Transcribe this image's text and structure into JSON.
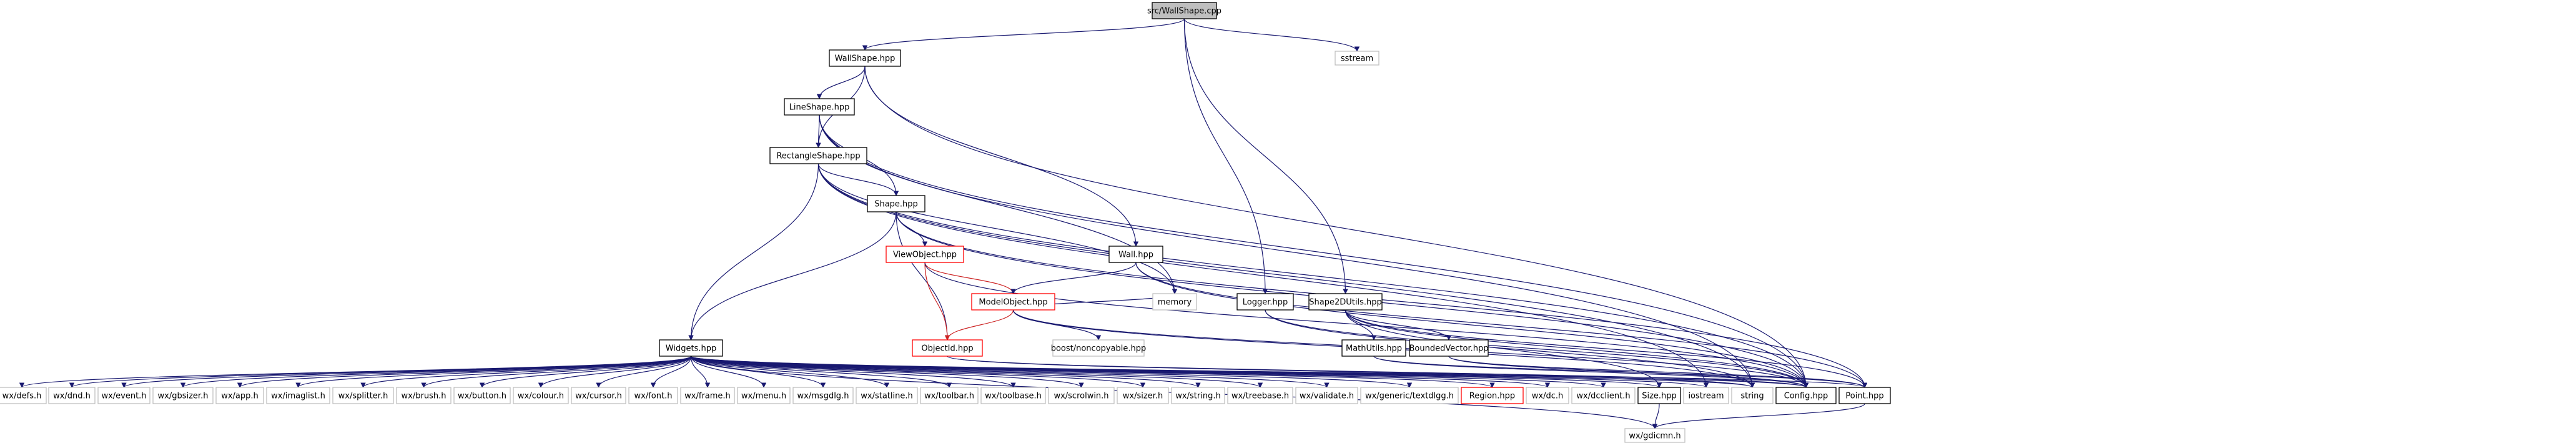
{
  "graph": {
    "colors": {
      "edge_blue": "#191970",
      "edge_red": "#cc2222",
      "truncated_border": "#ff0000",
      "root_fill": "#bfbfbf",
      "node_border": "#000000",
      "external_border": "#bfbfbf"
    },
    "nodes": {
      "root": "src/WallShape.cpp",
      "wallshape_hpp": "WallShape.hpp",
      "sstream": "sstream",
      "lineshape_hpp": "LineShape.hpp",
      "rectangleshape_hpp": "RectangleShape.hpp",
      "shape_hpp": "Shape.hpp",
      "viewobject_hpp": "ViewObject.hpp",
      "modelobject_hpp": "ModelObject.hpp",
      "objectid_hpp": "ObjectId.hpp",
      "boost_noncopyable": "boost/noncopyable.hpp",
      "memory": "memory",
      "wall_hpp": "Wall.hpp",
      "logger_hpp": "Logger.hpp",
      "shape2dutils_hpp": "Shape2DUtils.hpp",
      "mathutils_hpp": "MathUtils.hpp",
      "boundedvector_hpp": "BoundedVector.hpp",
      "widgets_hpp": "Widgets.hpp",
      "wx_defs": "wx/defs.h",
      "wx_dnd": "wx/dnd.h",
      "wx_event": "wx/event.h",
      "wx_gbsizer": "wx/gbsizer.h",
      "wx_app": "wx/app.h",
      "wx_imaglist": "wx/imaglist.h",
      "wx_splitter": "wx/splitter.h",
      "wx_brush": "wx/brush.h",
      "wx_button": "wx/button.h",
      "wx_colour": "wx/colour.h",
      "wx_cursor": "wx/cursor.h",
      "wx_font": "wx/font.h",
      "wx_frame": "wx/frame.h",
      "wx_menu": "wx/menu.h",
      "wx_msgdlg": "wx/msgdlg.h",
      "wx_statline": "wx/statline.h",
      "wx_toolbar": "wx/toolbar.h",
      "wx_toolbase": "wx/toolbase.h",
      "wx_scrolwin": "wx/scrolwin.h",
      "wx_sizer": "wx/sizer.h",
      "wx_string": "wx/string.h",
      "wx_treebase": "wx/treebase.h",
      "wx_validate": "wx/validate.h",
      "wx_generic_textdlgg": "wx/generic/textdlgg.h",
      "region_hpp": "Region.hpp",
      "wx_dc": "wx/dc.h",
      "wx_dcclient": "wx/dcclient.h",
      "size_hpp": "Size.hpp",
      "iostream": "iostream",
      "string": "string",
      "config_hpp": "Config.hpp",
      "point_hpp": "Point.hpp",
      "wx_gdicmn": "wx/gdicmn.h"
    }
  }
}
